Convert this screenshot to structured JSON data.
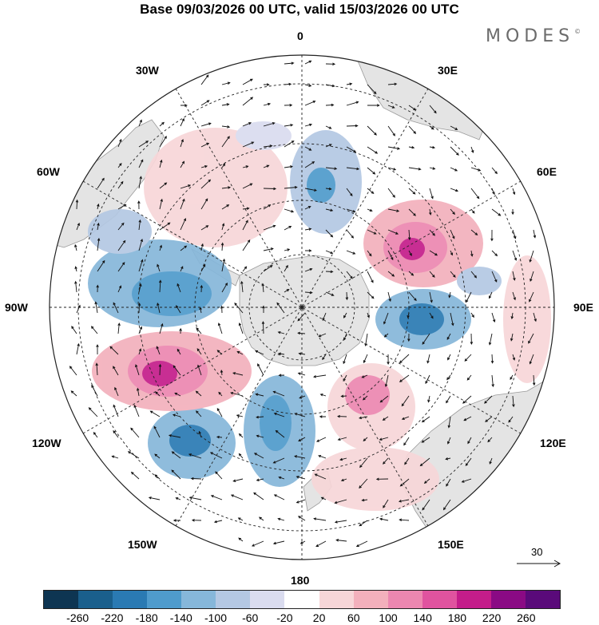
{
  "title": "Base 09/03/2026 00 UTC, valid 15/03/2026 00 UTC",
  "brand": "MODES",
  "brand_mark": "©",
  "longitude_labels": {
    "lon_0": "0",
    "lon_30e": "30E",
    "lon_60e": "60E",
    "lon_90e": "90E",
    "lon_120e": "120E",
    "lon_150e": "150E",
    "lon_180": "180",
    "lon_150w": "150W",
    "lon_120w": "120W",
    "lon_90w": "90W",
    "lon_60w": "60W",
    "lon_30w": "30W"
  },
  "reference_vector": {
    "label": "30"
  },
  "colorbar": {
    "ticks": [
      "-260",
      "-220",
      "-180",
      "-140",
      "-100",
      "-60",
      "-20",
      "20",
      "60",
      "100",
      "140",
      "180",
      "220",
      "260"
    ],
    "colors": [
      "#0e3552",
      "#1a5f8c",
      "#2a7ab3",
      "#4f9bcc",
      "#86b7da",
      "#b4c8e3",
      "#dadcef",
      "#ffffff",
      "#f7d6d8",
      "#f3b0bc",
      "#ec87b0",
      "#e0539f",
      "#c41d8a",
      "#8a0a84",
      "#5a0a7a"
    ]
  },
  "map": {
    "projection": "south-polar-stereographic",
    "field": "geopotential height anomaly",
    "anomalies": [
      {
        "name": "low-southern-ocean-30w-60w",
        "lon_deg": -40,
        "lat_deg": -50,
        "value": 60,
        "sign": "positive"
      },
      {
        "name": "low-amundsen-sea",
        "lon_deg": -95,
        "lat_deg": -58,
        "value": -180,
        "sign": "negative"
      },
      {
        "name": "high-south-pacific",
        "lon_deg": -125,
        "lat_deg": -55,
        "value": 220,
        "sign": "positive"
      },
      {
        "name": "low-south-pacific-east",
        "lon_deg": -145,
        "lat_deg": -45,
        "value": -180,
        "sign": "negative"
      },
      {
        "name": "low-ross-sea",
        "lon_deg": -170,
        "lat_deg": -60,
        "value": -140,
        "sign": "negative"
      },
      {
        "name": "high-tasman",
        "lon_deg": 160,
        "lat_deg": -62,
        "value": 100,
        "sign": "positive"
      },
      {
        "name": "low-south-indian",
        "lon_deg": 100,
        "lat_deg": -55,
        "value": -220,
        "sign": "negative"
      },
      {
        "name": "high-south-indian",
        "lon_deg": 55,
        "lat_deg": -50,
        "value": 220,
        "sign": "positive"
      },
      {
        "name": "low-weddell",
        "lon_deg": 5,
        "lat_deg": -58,
        "value": -100,
        "sign": "negative"
      }
    ]
  }
}
